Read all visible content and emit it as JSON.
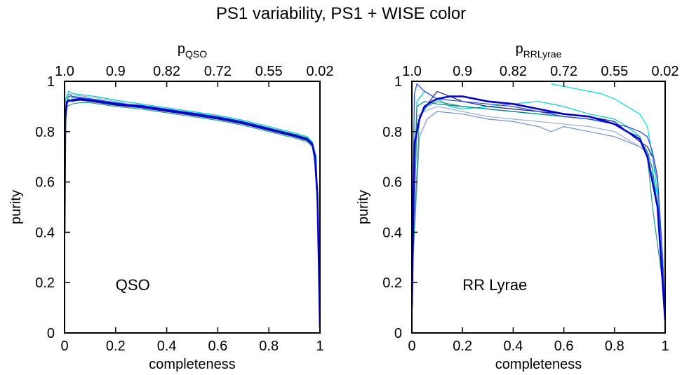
{
  "title": "PS1 variability, PS1 + WISE color",
  "chart_data": [
    {
      "type": "line",
      "annotation": "QSO",
      "xlabel": "completeness",
      "ylabel": "purity",
      "top_xlabel": {
        "main": "p",
        "sub": "QSO"
      },
      "xlim": [
        0,
        1
      ],
      "ylim": [
        0,
        1
      ],
      "xticks": [
        "0",
        "0.2",
        "0.4",
        "0.6",
        "0.8",
        "1"
      ],
      "yticks": [
        "0",
        "0.2",
        "0.4",
        "0.6",
        "0.8",
        "1"
      ],
      "top_ticks": [
        "1.0",
        "0.9",
        "0.82",
        "0.72",
        "0.55",
        "0.02"
      ],
      "grid": false,
      "legend": "none",
      "series": [
        {
          "color": "#0000cc",
          "bold": true,
          "x": [
            0,
            0.003,
            0.01,
            0.03,
            0.06,
            0.1,
            0.2,
            0.3,
            0.4,
            0.5,
            0.6,
            0.7,
            0.8,
            0.9,
            0.95,
            0.97,
            0.98,
            0.99,
            0.995,
            1.0
          ],
          "y": [
            0.4,
            0.86,
            0.92,
            0.925,
            0.93,
            0.925,
            0.91,
            0.9,
            0.885,
            0.87,
            0.855,
            0.835,
            0.81,
            0.785,
            0.77,
            0.75,
            0.7,
            0.55,
            0.3,
            0.02
          ]
        },
        {
          "color": "#2244ee",
          "x": [
            0,
            0.005,
            0.015,
            0.03,
            0.07,
            0.12,
            0.2,
            0.3,
            0.4,
            0.5,
            0.6,
            0.7,
            0.8,
            0.9,
            0.95,
            0.97,
            0.985,
            0.99,
            0.996,
            1.0
          ],
          "y": [
            0.5,
            0.9,
            0.95,
            0.94,
            0.935,
            0.928,
            0.915,
            0.905,
            0.89,
            0.875,
            0.86,
            0.84,
            0.815,
            0.79,
            0.775,
            0.755,
            0.68,
            0.5,
            0.25,
            0.03
          ]
        },
        {
          "color": "#1a1a7a",
          "x": [
            0,
            0.004,
            0.012,
            0.03,
            0.06,
            0.1,
            0.2,
            0.3,
            0.4,
            0.5,
            0.6,
            0.7,
            0.8,
            0.9,
            0.95,
            0.97,
            0.98,
            0.99,
            0.995,
            1.0
          ],
          "y": [
            0.45,
            0.88,
            0.93,
            0.92,
            0.925,
            0.92,
            0.905,
            0.895,
            0.88,
            0.865,
            0.85,
            0.83,
            0.805,
            0.78,
            0.765,
            0.745,
            0.69,
            0.52,
            0.28,
            0.02
          ]
        },
        {
          "color": "#00cccc",
          "x": [
            0,
            0.005,
            0.015,
            0.04,
            0.08,
            0.12,
            0.2,
            0.3,
            0.4,
            0.5,
            0.6,
            0.7,
            0.8,
            0.9,
            0.95,
            0.97,
            0.985,
            0.99,
            0.996,
            1.0
          ],
          "y": [
            0.5,
            0.93,
            0.96,
            0.95,
            0.945,
            0.94,
            0.925,
            0.91,
            0.895,
            0.88,
            0.865,
            0.845,
            0.82,
            0.795,
            0.78,
            0.76,
            0.7,
            0.55,
            0.3,
            0.03
          ]
        },
        {
          "color": "#2a9a8a",
          "x": [
            0,
            0.004,
            0.01,
            0.03,
            0.06,
            0.1,
            0.2,
            0.3,
            0.4,
            0.5,
            0.6,
            0.7,
            0.8,
            0.9,
            0.95,
            0.97,
            0.98,
            0.99,
            0.995,
            1.0
          ],
          "y": [
            0.45,
            0.83,
            0.9,
            0.91,
            0.915,
            0.915,
            0.9,
            0.89,
            0.875,
            0.86,
            0.845,
            0.825,
            0.8,
            0.775,
            0.76,
            0.74,
            0.68,
            0.5,
            0.25,
            0.02
          ]
        },
        {
          "color": "#9ab0dd",
          "x": [
            0,
            0.005,
            0.015,
            0.04,
            0.08,
            0.12,
            0.2,
            0.3,
            0.4,
            0.5,
            0.6,
            0.7,
            0.8,
            0.9,
            0.95,
            0.97,
            0.985,
            0.99,
            0.996,
            1.0
          ],
          "y": [
            0.5,
            0.9,
            0.95,
            0.945,
            0.94,
            0.935,
            0.92,
            0.9,
            0.885,
            0.87,
            0.855,
            0.835,
            0.81,
            0.785,
            0.77,
            0.75,
            0.69,
            0.52,
            0.27,
            0.03
          ]
        },
        {
          "color": "#6688cc",
          "x": [
            0,
            0.004,
            0.012,
            0.03,
            0.07,
            0.11,
            0.2,
            0.3,
            0.4,
            0.5,
            0.6,
            0.7,
            0.8,
            0.9,
            0.95,
            0.97,
            0.98,
            0.99,
            0.995,
            1.0
          ],
          "y": [
            0.45,
            0.86,
            0.92,
            0.93,
            0.93,
            0.925,
            0.91,
            0.898,
            0.883,
            0.868,
            0.853,
            0.833,
            0.808,
            0.783,
            0.768,
            0.748,
            0.69,
            0.53,
            0.28,
            0.02
          ]
        },
        {
          "color": "#008888",
          "x": [
            0,
            0.005,
            0.015,
            0.04,
            0.08,
            0.12,
            0.2,
            0.3,
            0.4,
            0.5,
            0.6,
            0.7,
            0.8,
            0.9,
            0.95,
            0.97,
            0.985,
            0.99,
            0.996,
            1.0
          ],
          "y": [
            0.5,
            0.89,
            0.94,
            0.935,
            0.93,
            0.926,
            0.912,
            0.9,
            0.886,
            0.872,
            0.858,
            0.838,
            0.813,
            0.79,
            0.775,
            0.755,
            0.7,
            0.54,
            0.28,
            0.02
          ]
        }
      ]
    },
    {
      "type": "line",
      "annotation": "RR Lyrae",
      "xlabel": "completeness",
      "ylabel": "purity",
      "top_xlabel": {
        "main": "p",
        "sub": "RRLyrae"
      },
      "xlim": [
        0,
        1
      ],
      "ylim": [
        0,
        1
      ],
      "xticks": [
        "0",
        "0.2",
        "0.4",
        "0.6",
        "0.8",
        "1"
      ],
      "yticks": [
        "0",
        "0.2",
        "0.4",
        "0.6",
        "0.8",
        "1"
      ],
      "top_ticks": [
        "1.0",
        "0.9",
        "0.82",
        "0.72",
        "0.55",
        "0.02"
      ],
      "grid": false,
      "legend": "none",
      "series": [
        {
          "color": "#0000cc",
          "bold": true,
          "x": [
            0,
            0.01,
            0.03,
            0.05,
            0.08,
            0.1,
            0.15,
            0.2,
            0.25,
            0.3,
            0.4,
            0.5,
            0.6,
            0.7,
            0.8,
            0.85,
            0.9,
            0.93,
            0.95,
            0.97,
            0.98,
            0.99,
            1.0
          ],
          "y": [
            0.1,
            0.75,
            0.85,
            0.9,
            0.92,
            0.93,
            0.94,
            0.94,
            0.93,
            0.92,
            0.91,
            0.89,
            0.87,
            0.86,
            0.83,
            0.8,
            0.77,
            0.7,
            0.6,
            0.5,
            0.35,
            0.2,
            0.05
          ]
        },
        {
          "color": "#00dddd",
          "x": [
            0.55,
            0.6,
            0.65,
            0.7,
            0.75,
            0.8,
            0.85,
            0.9,
            0.93,
            0.95,
            0.97,
            0.99,
            1.0
          ],
          "y": [
            0.99,
            0.98,
            0.97,
            0.96,
            0.95,
            0.93,
            0.9,
            0.87,
            0.82,
            0.7,
            0.55,
            0.2,
            0.05
          ]
        },
        {
          "color": "#00cccc",
          "x": [
            0,
            0.02,
            0.05,
            0.1,
            0.15,
            0.2,
            0.3,
            0.4,
            0.5,
            0.6,
            0.7,
            0.8,
            0.85,
            0.9,
            0.93,
            0.95,
            0.97,
            0.99,
            1.0
          ],
          "y": [
            0.3,
            0.92,
            0.96,
            0.93,
            0.9,
            0.89,
            0.9,
            0.91,
            0.92,
            0.9,
            0.87,
            0.85,
            0.82,
            0.78,
            0.7,
            0.62,
            0.55,
            0.3,
            0.05
          ]
        },
        {
          "color": "#1a1a7a",
          "x": [
            0,
            0.02,
            0.04,
            0.07,
            0.1,
            0.15,
            0.2,
            0.3,
            0.4,
            0.5,
            0.6,
            0.7,
            0.8,
            0.85,
            0.9,
            0.93,
            0.95,
            0.97,
            0.99,
            1.0
          ],
          "y": [
            0.2,
            0.82,
            0.88,
            0.92,
            0.96,
            0.94,
            0.92,
            0.9,
            0.89,
            0.88,
            0.87,
            0.86,
            0.84,
            0.8,
            0.76,
            0.74,
            0.7,
            0.6,
            0.3,
            0.05
          ]
        },
        {
          "color": "#9ab0dd",
          "x": [
            0,
            0.02,
            0.05,
            0.1,
            0.2,
            0.3,
            0.4,
            0.5,
            0.6,
            0.7,
            0.8,
            0.85,
            0.9,
            0.93,
            0.95,
            0.97,
            0.99,
            1.0
          ],
          "y": [
            0.2,
            0.86,
            0.88,
            0.9,
            0.88,
            0.86,
            0.85,
            0.84,
            0.83,
            0.82,
            0.8,
            0.77,
            0.74,
            0.72,
            0.65,
            0.5,
            0.3,
            0.05
          ]
        },
        {
          "color": "#7a90c8",
          "x": [
            0,
            0.03,
            0.06,
            0.1,
            0.2,
            0.3,
            0.4,
            0.5,
            0.55,
            0.6,
            0.7,
            0.8,
            0.85,
            0.9,
            0.95,
            0.97,
            0.99,
            1.0
          ],
          "y": [
            0.2,
            0.78,
            0.85,
            0.88,
            0.87,
            0.85,
            0.84,
            0.82,
            0.8,
            0.82,
            0.8,
            0.78,
            0.76,
            0.74,
            0.7,
            0.6,
            0.3,
            0.05
          ]
        },
        {
          "color": "#2a9a8a",
          "x": [
            0,
            0.03,
            0.06,
            0.1,
            0.15,
            0.2,
            0.3,
            0.4,
            0.5,
            0.6,
            0.7,
            0.8,
            0.85,
            0.9,
            0.93,
            0.95,
            0.97,
            0.99,
            1.0
          ],
          "y": [
            0.2,
            0.86,
            0.9,
            0.92,
            0.91,
            0.9,
            0.89,
            0.88,
            0.87,
            0.86,
            0.85,
            0.83,
            0.8,
            0.78,
            0.7,
            0.5,
            0.35,
            0.2,
            0.05
          ]
        },
        {
          "color": "#008888",
          "x": [
            0,
            0.02,
            0.05,
            0.1,
            0.2,
            0.3,
            0.4,
            0.5,
            0.6,
            0.7,
            0.8,
            0.85,
            0.9,
            0.93,
            0.95,
            0.97,
            0.99,
            1.0
          ],
          "y": [
            0.3,
            0.9,
            0.92,
            0.91,
            0.9,
            0.89,
            0.88,
            0.87,
            0.86,
            0.85,
            0.83,
            0.8,
            0.77,
            0.72,
            0.65,
            0.5,
            0.25,
            0.05
          ]
        },
        {
          "color": "#2244ee",
          "x": [
            0,
            0.01,
            0.02,
            0.05,
            0.1,
            0.2,
            0.3,
            0.4,
            0.5,
            0.6,
            0.7,
            0.8,
            0.85,
            0.9,
            0.93,
            0.95,
            0.97,
            0.99,
            1.0
          ],
          "y": [
            0.2,
            0.95,
            0.99,
            0.96,
            0.93,
            0.92,
            0.91,
            0.9,
            0.88,
            0.86,
            0.85,
            0.83,
            0.82,
            0.8,
            0.78,
            0.72,
            0.62,
            0.3,
            0.05
          ]
        }
      ]
    }
  ]
}
